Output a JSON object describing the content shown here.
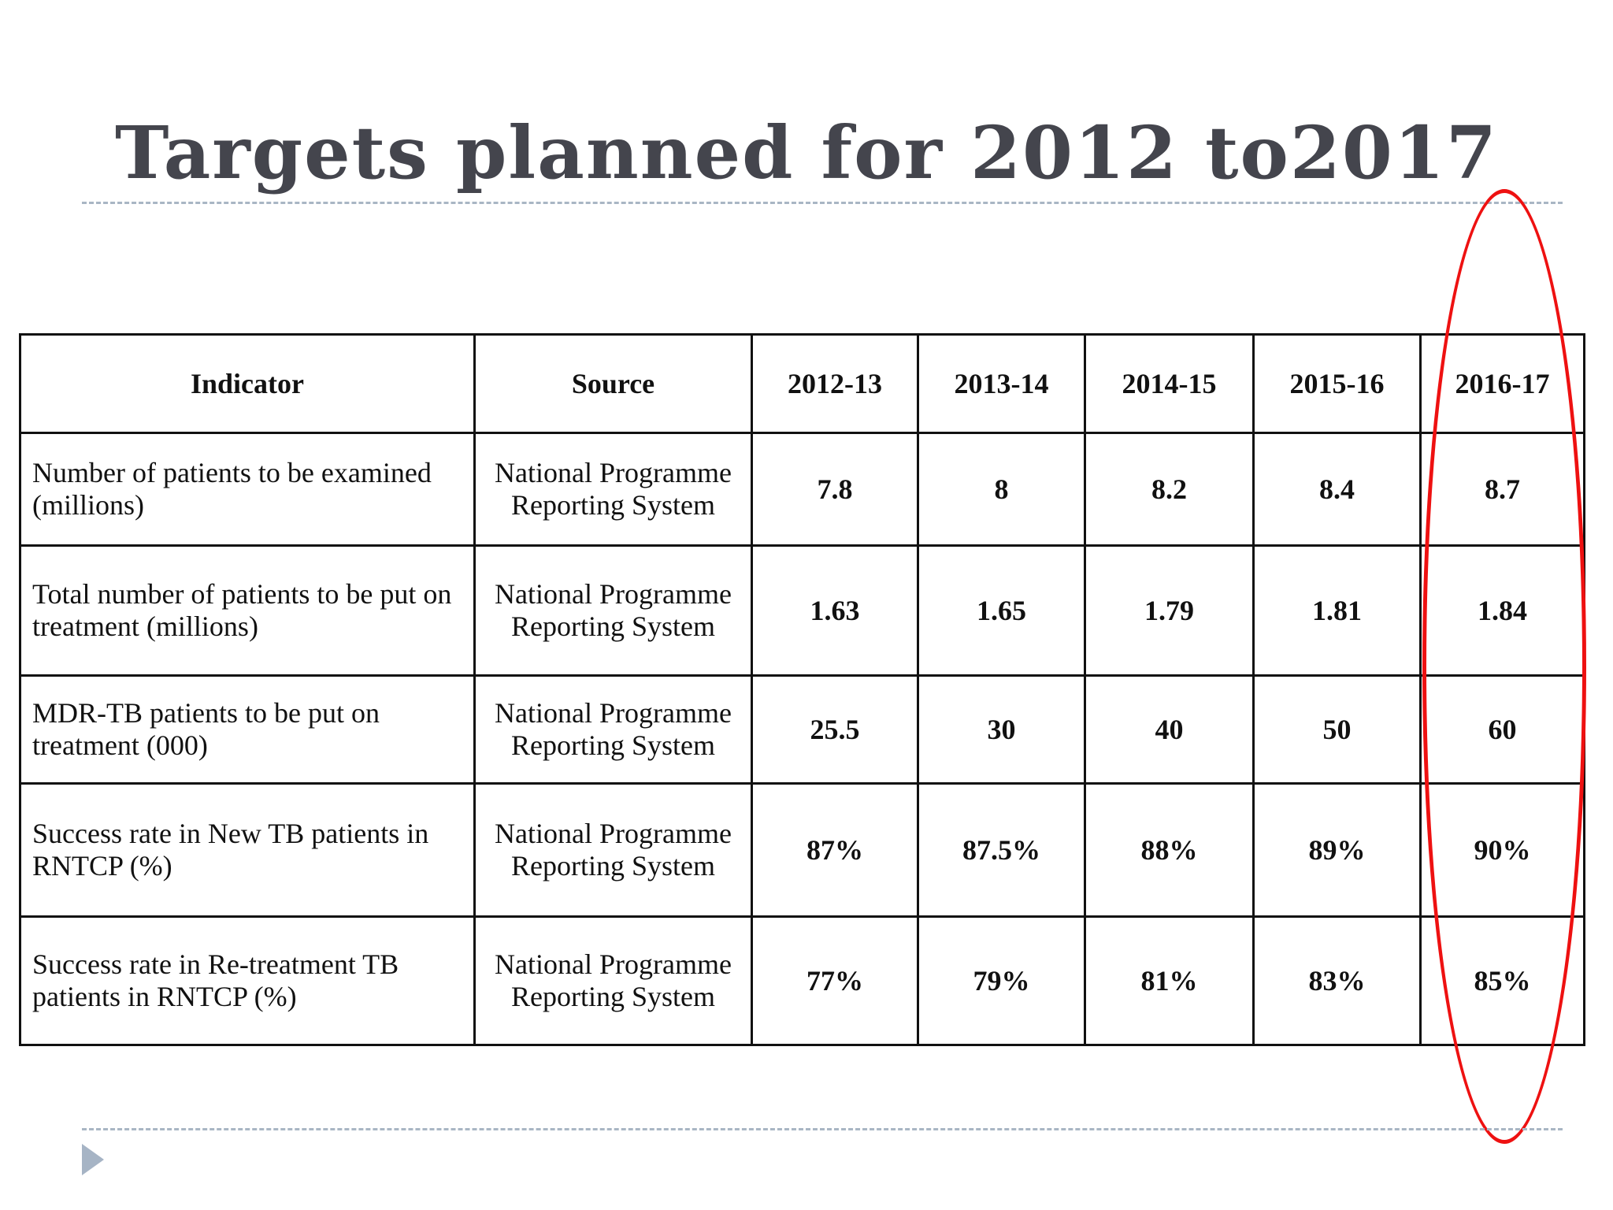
{
  "title": "Targets planned for 2012 to2017",
  "table": {
    "headers": [
      "Indicator",
      "Source",
      "2012-13",
      "2013-14",
      "2014-15",
      "2015-16",
      "2016-17"
    ],
    "rows": [
      {
        "indicator": "Number of patients to be examined (millions)",
        "source": "National Programme Reporting System",
        "values": [
          "7.8",
          "8",
          "8.2",
          "8.4",
          "8.7"
        ]
      },
      {
        "indicator": "Total number of patients to be put on treatment (millions)",
        "source": "National Programme Reporting System",
        "values": [
          "1.63",
          "1.65",
          "1.79",
          "1.81",
          "1.84"
        ]
      },
      {
        "indicator": "MDR-TB patients to be put on treatment (000)",
        "source": "National Programme Reporting System",
        "values": [
          "25.5",
          "30",
          "40",
          "50",
          "60"
        ]
      },
      {
        "indicator": "Success rate in New TB patients in RNTCP (%)",
        "source": "National Programme Reporting System",
        "values": [
          "87%",
          "87.5%",
          "88%",
          "89%",
          "90%"
        ]
      },
      {
        "indicator": "Success rate in Re-treatment TB patients in RNTCP (%)",
        "source": "National Programme Reporting System",
        "values": [
          "77%",
          "79%",
          "81%",
          "83%",
          "85%"
        ]
      }
    ]
  },
  "highlight": {
    "color": "#ee1111",
    "target_column": "2016-17"
  },
  "colors": {
    "title": "#44454d",
    "divider": "#a9b6c4",
    "bullet": "#a6b4c5"
  },
  "icons": {
    "bullet": "triangle-bullet-icon"
  }
}
